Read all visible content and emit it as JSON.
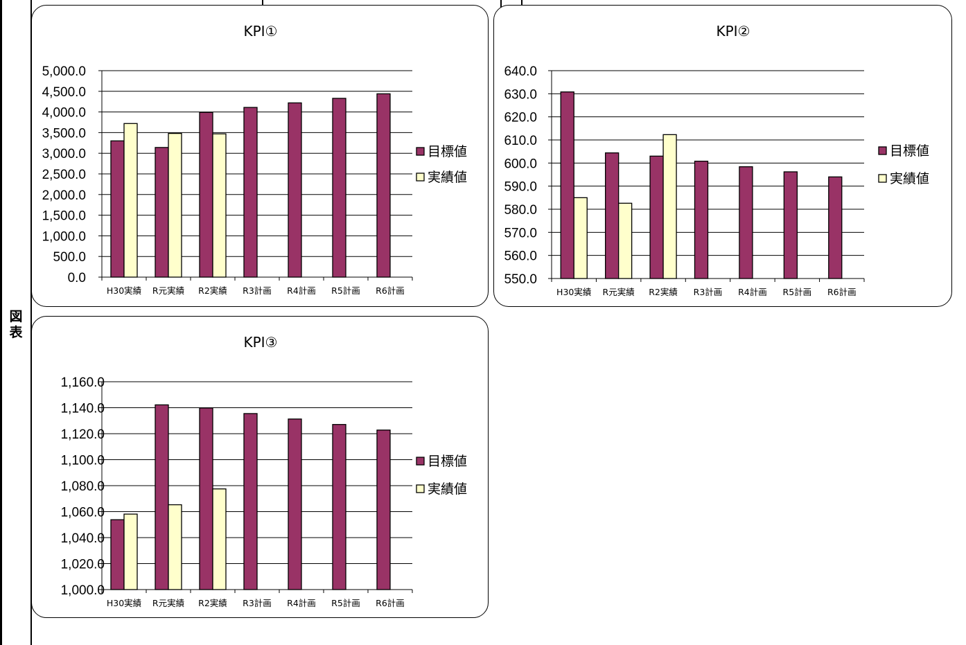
{
  "side_label": [
    "図",
    "表"
  ],
  "colors": {
    "target": "#993366",
    "actual": "#ffffcc",
    "line": "#000000"
  },
  "chart_data": [
    {
      "type": "bar",
      "title": "KPI①",
      "categories": [
        "H30実績",
        "R元実績",
        "R2実績",
        "R3計画",
        "R4計画",
        "R5計画",
        "R6計画"
      ],
      "series": [
        {
          "name": "目標値",
          "values": [
            3300,
            3140,
            3990,
            4110,
            4220,
            4330,
            4440
          ]
        },
        {
          "name": "実績値",
          "values": [
            3720,
            3480,
            3470,
            null,
            null,
            null,
            null
          ]
        }
      ],
      "ylim": [
        0,
        5000
      ],
      "yticks": [
        0,
        500,
        1000,
        1500,
        2000,
        2500,
        3000,
        3500,
        4000,
        4500,
        5000
      ],
      "ytick_labels": [
        "0.0",
        "500.0",
        "1,000.0",
        "1,500.0",
        "2,000.0",
        "2,500.0",
        "3,000.0",
        "3,500.0",
        "4,000.0",
        "4,500.0",
        "5,000.0"
      ],
      "grid": true,
      "legend": "right"
    },
    {
      "type": "bar",
      "title": "KPI②",
      "categories": [
        "H30実績",
        "R元実績",
        "R2実績",
        "R3計画",
        "R4計画",
        "R5計画",
        "R6計画"
      ],
      "series": [
        {
          "name": "目標値",
          "values": [
            630.8,
            604.4,
            603.0,
            600.8,
            598.4,
            596.2,
            594.0
          ]
        },
        {
          "name": "実績値",
          "values": [
            585.0,
            582.6,
            612.3,
            null,
            null,
            null,
            null
          ]
        }
      ],
      "ylim": [
        550,
        640
      ],
      "yticks": [
        550,
        560,
        570,
        580,
        590,
        600,
        610,
        620,
        630,
        640
      ],
      "ytick_labels": [
        "550.0",
        "560.0",
        "570.0",
        "580.0",
        "590.0",
        "600.0",
        "610.0",
        "620.0",
        "630.0",
        "640.0"
      ],
      "grid": true,
      "legend": "right"
    },
    {
      "type": "bar",
      "title": "KPI③",
      "categories": [
        "H30実績",
        "R元実績",
        "R2実績",
        "R3計画",
        "R4計画",
        "R5計画",
        "R6計画"
      ],
      "series": [
        {
          "name": "目標値",
          "values": [
            1053.8,
            1142.2,
            1139.8,
            1135.5,
            1131.3,
            1127.1,
            1122.8
          ]
        },
        {
          "name": "実績値",
          "values": [
            1058.1,
            1065.3,
            1077.5,
            null,
            null,
            null,
            null
          ]
        }
      ],
      "ylim": [
        1000,
        1160
      ],
      "yticks": [
        1000,
        1020,
        1040,
        1060,
        1080,
        1100,
        1120,
        1140,
        1160
      ],
      "ytick_labels": [
        "1,000.0",
        "1,020.0",
        "1,040.0",
        "1,060.0",
        "1,080.0",
        "1,100.0",
        "1,120.0",
        "1,140.0",
        "1,160.0"
      ],
      "grid": true,
      "legend": "right"
    }
  ]
}
